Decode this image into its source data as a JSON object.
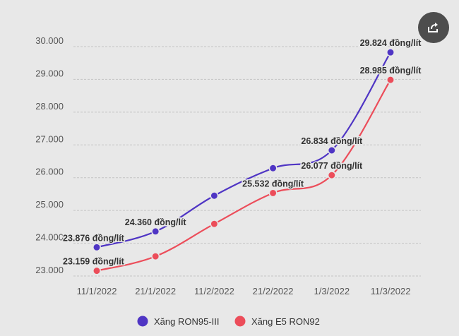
{
  "share_icon": "share-icon",
  "chart_data": {
    "type": "line",
    "title": "",
    "xlabel": "",
    "ylabel": "",
    "categories": [
      "11/1/2022",
      "21/1/2022",
      "11/2/2022",
      "21/2/2022",
      "1/3/2022",
      "11/3/2022"
    ],
    "ylim": [
      23000,
      30000
    ],
    "yticks": [
      "23.000",
      "24.000",
      "25.000",
      "26.000",
      "27.000",
      "28.000",
      "29.000",
      "30.000"
    ],
    "grid": true,
    "legend_position": "bottom",
    "series": [
      {
        "name": "Xăng RON95-III",
        "color": "#4f35c4",
        "values": [
          23876,
          24360,
          25450,
          26290,
          26834,
          29824
        ],
        "labels": [
          "23.876 đồng/lít",
          "24.360 đồng/lít",
          null,
          null,
          "26.834 đồng/lít",
          "29.824 đồng/lít"
        ]
      },
      {
        "name": "Xăng E5 RON92",
        "color": "#ec4d5a",
        "values": [
          23159,
          23600,
          24590,
          25532,
          26077,
          28985
        ],
        "labels": [
          "23.159 đồng/lít",
          null,
          null,
          "25.532 đồng/lít",
          "26.077 đồng/lít",
          "28.985 đồng/lít"
        ]
      }
    ]
  }
}
